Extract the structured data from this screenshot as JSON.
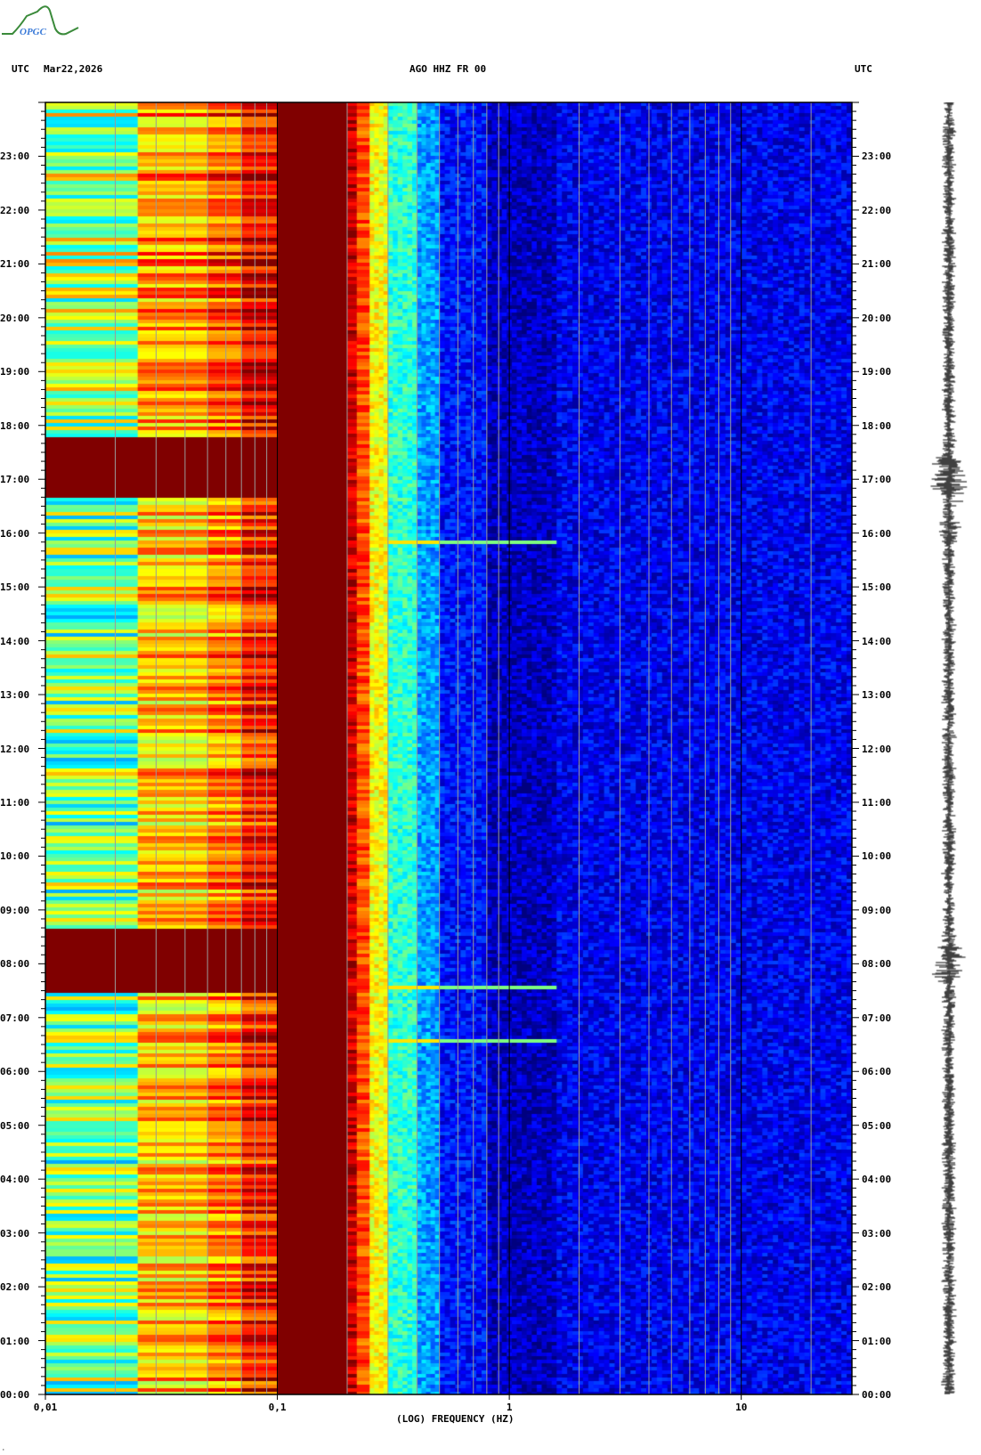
{
  "header": {
    "logo_text": "OPGC",
    "left_tz": "UTC",
    "date": "Mar22,2026",
    "station": "AGO HHZ FR 00",
    "right_tz": "UTC"
  },
  "chart_data": {
    "type": "heatmap",
    "title": "AGO HHZ FR 00",
    "xlabel": "(LOG) FREQUENCY (HZ)",
    "x_scale": "log",
    "x_range_hz": [
      0.01,
      30
    ],
    "x_ticks": [
      "0,01",
      "0,1",
      "1",
      "10"
    ],
    "y_range": [
      "00:00",
      "24:00"
    ],
    "y_ticks": [
      "00:00",
      "01:00",
      "02:00",
      "03:00",
      "04:00",
      "05:00",
      "06:00",
      "07:00",
      "08:00",
      "09:00",
      "10:00",
      "11:00",
      "12:00",
      "13:00",
      "14:00",
      "15:00",
      "16:00",
      "17:00",
      "18:00",
      "19:00",
      "20:00",
      "21:00",
      "22:00",
      "23:00"
    ],
    "colormap": "jet",
    "colors": {
      "low": "#00009f",
      "high": "#800000",
      "background": "#0000a8"
    },
    "events_utc": [
      "06:35",
      "07:35",
      "15:50"
    ],
    "high_power_low_freq_intervals_utc": [
      [
        "07:30",
        "08:40"
      ],
      [
        "16:40",
        "17:50"
      ]
    ],
    "side_trace": "seismogram"
  }
}
